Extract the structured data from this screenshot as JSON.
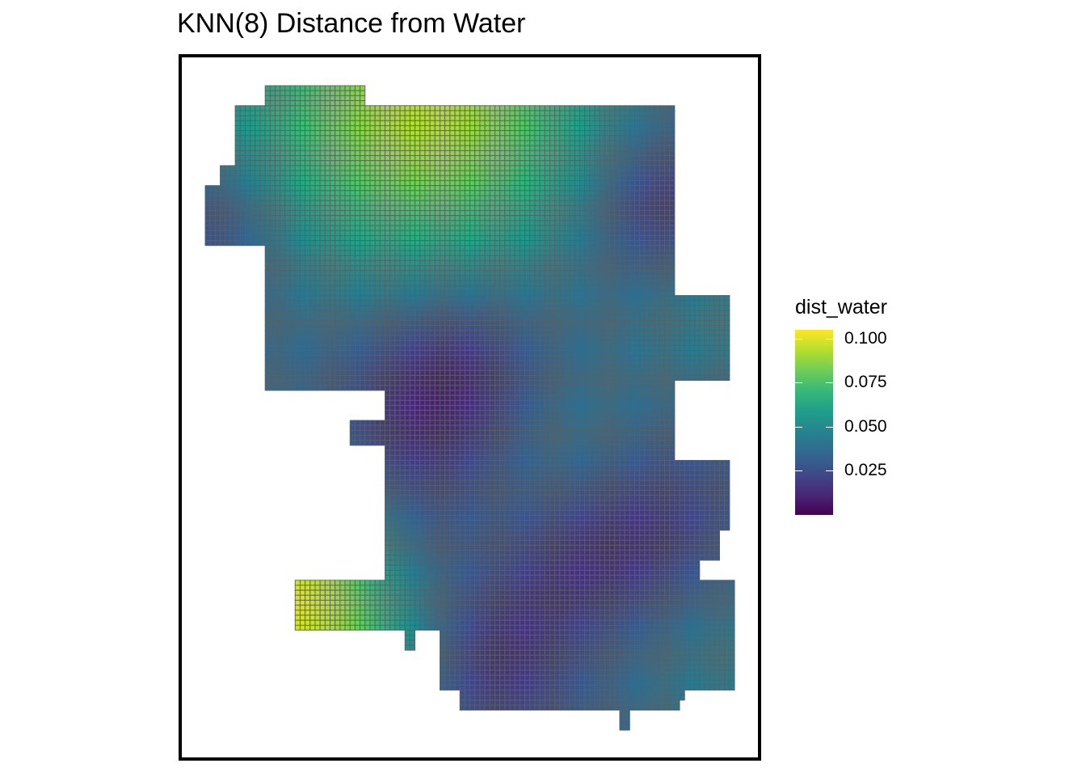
{
  "title": "KNN(8) Distance from Water",
  "legend": {
    "title": "dist_water",
    "min": 0.0,
    "max": 0.105,
    "breaks": [
      {
        "value": 0.1,
        "label": "0.100"
      },
      {
        "value": 0.075,
        "label": "0.075"
      },
      {
        "value": 0.05,
        "label": "0.050"
      },
      {
        "value": 0.025,
        "label": "0.025"
      }
    ],
    "palette": [
      "#440154",
      "#482878",
      "#3E4A89",
      "#31688E",
      "#26828E",
      "#1F9E89",
      "#35B779",
      "#6DCD59",
      "#B4DE2C",
      "#FDE725"
    ]
  },
  "map": {
    "type": "fishnet-grid",
    "cell_outline_color": "#5f5f5f",
    "variable": "dist_water"
  }
}
